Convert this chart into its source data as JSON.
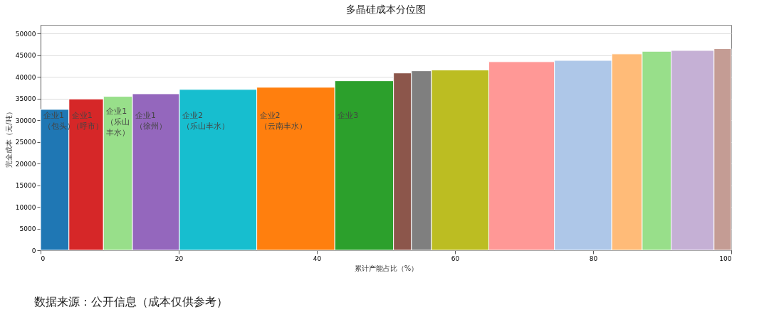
{
  "chart_data": {
    "type": "histogram",
    "title": "多晶硅成本分位图",
    "xlabel": "累计产能占比（%）",
    "ylabel": "完全成本（元/吨）",
    "bins": [
      0,
      4.1,
      9.1,
      13.3,
      20.1,
      31.3,
      42.6,
      51.1,
      53.7,
      56.6,
      64.9,
      74.4,
      82.7,
      87.1,
      91.3,
      97.5,
      100
    ],
    "values": [
      32500,
      34900,
      35500,
      36100,
      37100,
      37600,
      39100,
      40900,
      41400,
      41600,
      43500,
      43800,
      45300,
      45900,
      46100,
      46500
    ],
    "colors": [
      "#1f77b4",
      "#d62728",
      "#98df8a",
      "#9467bd",
      "#17becf",
      "#ff7f0e",
      "#2ca02c",
      "#8c564b",
      "#7f7f7f",
      "#bcbd22",
      "#ff9896",
      "#aec7e8",
      "#ffbb78",
      "#98df8a",
      "#c5b0d5",
      "#c49c94"
    ],
    "xlim": [
      0,
      100
    ],
    "xticks": [
      0,
      20,
      40,
      60,
      80,
      100
    ],
    "ylim": [
      0,
      52000
    ],
    "yticks": [
      0,
      5000,
      10000,
      15000,
      20000,
      25000,
      30000,
      35000,
      40000,
      45000,
      50000
    ],
    "grid": "y",
    "annotations": [
      {
        "text": "企业1（包头）",
        "x": 0,
        "y": 32000
      },
      {
        "text": "企业1（呼市）",
        "x": 4.1,
        "y": 32000
      },
      {
        "text": "企业1（乐山丰水）",
        "x": 9.1,
        "y": 33000
      },
      {
        "text": "企业1（徐州）",
        "x": 13.3,
        "y": 32000
      },
      {
        "text": "企业2（乐山丰水）",
        "x": 20.1,
        "y": 32000
      },
      {
        "text": "企业2（云南丰水）",
        "x": 31.3,
        "y": 32000
      },
      {
        "text": "企业3",
        "x": 42.6,
        "y": 32000
      },
      "数据来源：公开信息（成本仅供参考）"
    ]
  }
}
